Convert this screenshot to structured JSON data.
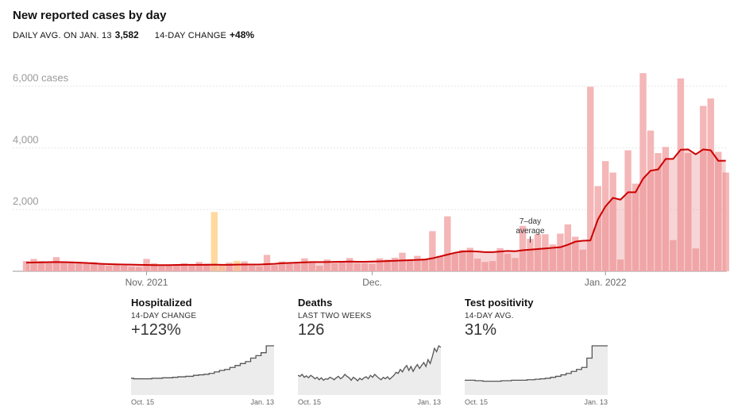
{
  "header": {
    "title": "New reported cases by day",
    "avg_label": "DAILY AVG. ON JAN. 13",
    "avg_value": "3,582",
    "change_label": "14-DAY CHANGE",
    "change_value": "+48%"
  },
  "chart_data": {
    "type": "bar",
    "title": "New reported cases by day",
    "ylim": [
      0,
      6300
    ],
    "ytick_labels": [
      "6,000 cases",
      "4,000",
      "2,000"
    ],
    "ytick_values": [
      6000,
      4000,
      2000
    ],
    "xtick_labels": [
      "Nov. 2021",
      "Dec.",
      "Jan. 2022"
    ],
    "xtick_days": [
      16,
      46,
      77
    ],
    "grid": true,
    "annotation": "7–day average",
    "annotation_day": 67,
    "colors": {
      "bar": "#f4b6b7",
      "bar_highlight": "#ffd9a0",
      "average_line": "#cc0000",
      "grid": "#e6e6e6"
    },
    "highlight_days": [
      25,
      26,
      28
    ],
    "series": [
      {
        "kind": "bar",
        "values": [
          330,
          400,
          330,
          280,
          460,
          310,
          300,
          300,
          280,
          300,
          230,
          180,
          200,
          180,
          150,
          140,
          400,
          260,
          170,
          220,
          190,
          260,
          180,
          300,
          250,
          1920,
          220,
          280,
          340,
          320,
          180,
          160,
          530,
          200,
          320,
          290,
          280,
          420,
          300,
          180,
          380,
          260,
          300,
          430,
          260,
          260,
          240,
          420,
          380,
          440,
          600,
          370,
          500,
          410,
          1300,
          500,
          1780,
          580,
          690,
          760,
          410,
          300,
          330,
          750,
          570,
          430,
          1470,
          1050,
          1200,
          1200,
          870,
          1220,
          1520,
          1120,
          700,
          5980,
          2760,
          3570,
          3200,
          380,
          3920,
          2840,
          6420,
          4560,
          3830,
          4030,
          1010,
          6250,
          3830,
          740,
          5360,
          5600,
          3870,
          3200
        ]
      },
      {
        "kind": "line",
        "name": "7–day average",
        "values": [
          280,
          285,
          290,
          295,
          300,
          295,
          290,
          280,
          270,
          255,
          240,
          230,
          225,
          220,
          215,
          210,
          205,
          200,
          200,
          200,
          205,
          210,
          210,
          210,
          210,
          215,
          210,
          210,
          215,
          220,
          220,
          220,
          230,
          240,
          260,
          270,
          280,
          290,
          300,
          300,
          300,
          305,
          310,
          315,
          310,
          310,
          315,
          320,
          330,
          340,
          350,
          360,
          370,
          380,
          420,
          480,
          540,
          600,
          640,
          650,
          640,
          620,
          620,
          640,
          660,
          650,
          680,
          700,
          720,
          740,
          760,
          780,
          860,
          960,
          990,
          1000,
          1680,
          2100,
          2380,
          2320,
          2560,
          2560,
          3000,
          3260,
          3300,
          3640,
          3640,
          3940,
          3950,
          3790,
          3950,
          3920,
          3580,
          3582
        ]
      }
    ]
  },
  "panels": [
    {
      "title": "Hospitalized",
      "sub": "14-DAY CHANGE",
      "value": "+123%",
      "x_start": "Oct. 15",
      "x_end": "Jan. 13",
      "shape": "step",
      "values": [
        0.34,
        0.33,
        0.33,
        0.33,
        0.33,
        0.33,
        0.33,
        0.33,
        0.34,
        0.34,
        0.34,
        0.34,
        0.35,
        0.35,
        0.35,
        0.35,
        0.36,
        0.36,
        0.37,
        0.37,
        0.37,
        0.38,
        0.38,
        0.38,
        0.4,
        0.4,
        0.41,
        0.41,
        0.42,
        0.42,
        0.44,
        0.44,
        0.47,
        0.47,
        0.5,
        0.5,
        0.52,
        0.52,
        0.56,
        0.56,
        0.6,
        0.6,
        0.64,
        0.64,
        0.68,
        0.68,
        0.75,
        0.75,
        0.8,
        0.8,
        0.86,
        0.86,
        1.0,
        1.0,
        1.0,
        1.0
      ]
    },
    {
      "title": "Deaths",
      "sub": "LAST TWO WEEKS",
      "value": "126",
      "x_start": "Oct. 15",
      "x_end": "Jan. 13",
      "shape": "line",
      "values": [
        0.4,
        0.38,
        0.42,
        0.36,
        0.39,
        0.35,
        0.4,
        0.37,
        0.33,
        0.36,
        0.31,
        0.35,
        0.3,
        0.33,
        0.32,
        0.36,
        0.34,
        0.31,
        0.35,
        0.38,
        0.33,
        0.36,
        0.42,
        0.38,
        0.35,
        0.3,
        0.36,
        0.33,
        0.29,
        0.34,
        0.31,
        0.35,
        0.37,
        0.33,
        0.4,
        0.36,
        0.42,
        0.38,
        0.34,
        0.31,
        0.36,
        0.33,
        0.37,
        0.32,
        0.36,
        0.4,
        0.46,
        0.44,
        0.52,
        0.47,
        0.55,
        0.6,
        0.5,
        0.58,
        0.48,
        0.56,
        0.62,
        0.54,
        0.6,
        0.66,
        0.58,
        0.72,
        0.64,
        0.78,
        0.95,
        0.88,
        1.0,
        0.97
      ]
    },
    {
      "title": "Test positivity",
      "sub": "14-DAY AVG.",
      "value": "31%",
      "x_start": "Oct. 15",
      "x_end": "Jan. 13",
      "shape": "step",
      "values": [
        0.3,
        0.3,
        0.3,
        0.3,
        0.29,
        0.29,
        0.29,
        0.28,
        0.28,
        0.28,
        0.28,
        0.28,
        0.28,
        0.28,
        0.29,
        0.29,
        0.29,
        0.29,
        0.3,
        0.3,
        0.3,
        0.3,
        0.3,
        0.3,
        0.31,
        0.31,
        0.31,
        0.32,
        0.32,
        0.33,
        0.33,
        0.34,
        0.34,
        0.36,
        0.36,
        0.38,
        0.38,
        0.41,
        0.41,
        0.44,
        0.44,
        0.48,
        0.48,
        0.52,
        0.52,
        0.56,
        0.56,
        0.75,
        0.75,
        1.0,
        1.0,
        1.0,
        1.0,
        1.0,
        1.0,
        1.0
      ]
    }
  ]
}
